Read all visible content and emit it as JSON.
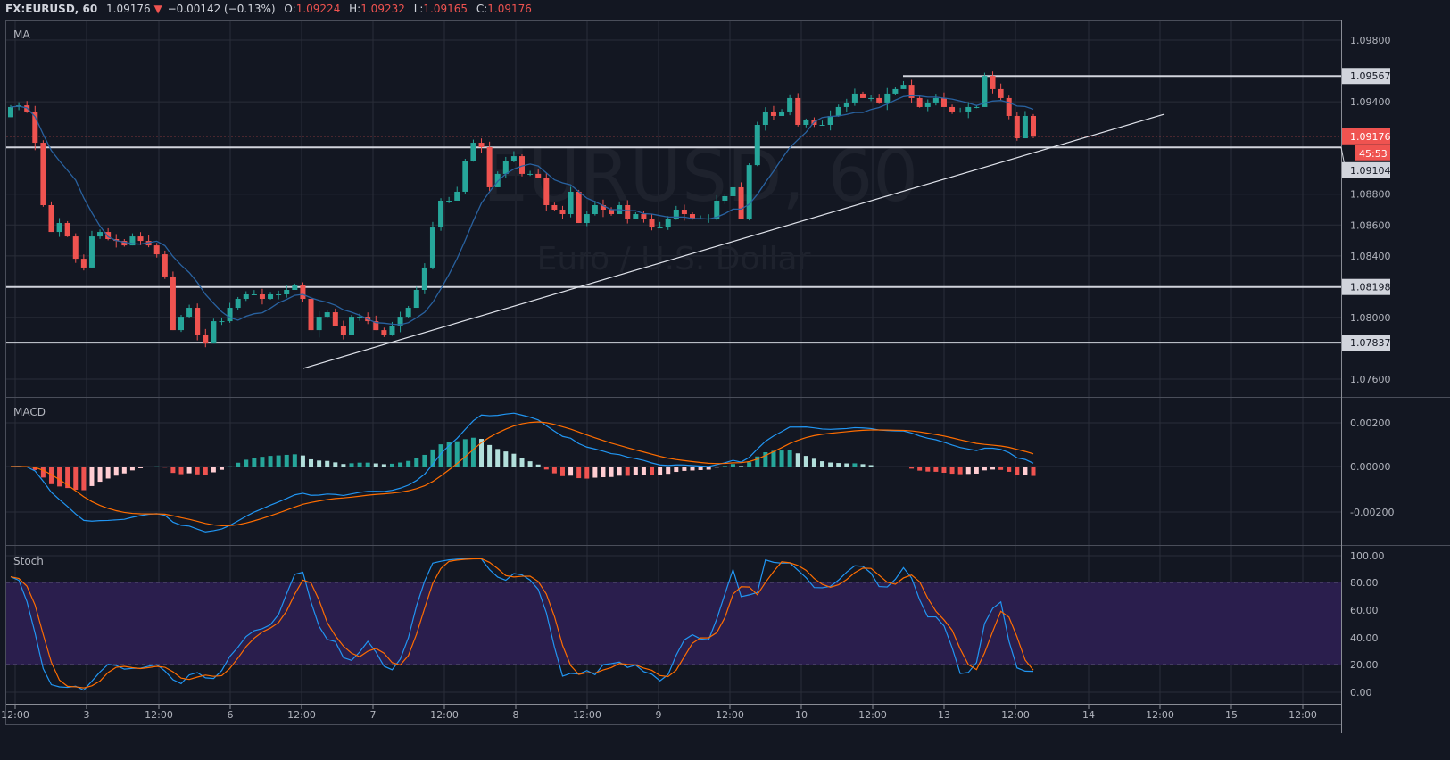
{
  "header": {
    "symbol": "FX:EURUSD, 60",
    "last": "1.09176",
    "change": "−0.00142 (−0.13%)",
    "o_label": "O:",
    "o": "1.09224",
    "h_label": "H:",
    "h": "1.09232",
    "l_label": "L:",
    "l": "1.09165",
    "c_label": "C:",
    "c": "1.09176",
    "direction_icon": "triangle-down"
  },
  "watermark": {
    "title": "EURUSD, 60",
    "subtitle": "Euro / U.S. Dollar"
  },
  "panes": {
    "price": "MA",
    "macd": "MACD",
    "stoch": "Stoch"
  },
  "price_axis": [
    "1.09800",
    "1.09400",
    "1.08800",
    "1.08600",
    "1.08400",
    "1.08000",
    "1.07600"
  ],
  "price_axis_values": [
    1.098,
    1.094,
    1.088,
    1.086,
    1.084,
    1.08,
    1.076
  ],
  "level_tags": [
    "1.09567",
    "1.09104",
    "1.08198",
    "1.07837"
  ],
  "level_values": [
    1.09567,
    1.09104,
    1.08198,
    1.07837
  ],
  "current_price_tag": "1.09176",
  "countdown": "45:53",
  "macd_axis": [
    "0.00200",
    "0.00000",
    "-0.00200"
  ],
  "stoch_axis": [
    "100.00",
    "80.00",
    "60.00",
    "40.00",
    "20.00",
    "0.00"
  ],
  "time_axis": [
    "12:00",
    "3",
    "12:00",
    "6",
    "12:00",
    "7",
    "12:00",
    "8",
    "12:00",
    "9",
    "12:00",
    "10",
    "12:00",
    "13",
    "12:00",
    "14",
    "12:00",
    "15",
    "12:00"
  ],
  "colors": {
    "up": "#26a69a",
    "down": "#ef5350",
    "ma": "#2962a0",
    "macd": "#2196f3",
    "signal": "#ff6d00",
    "stoch_band": "#2a1e4d",
    "background": "#131722"
  },
  "chart_data": {
    "type": "candlestick",
    "interval": "60",
    "first_open": 1.093,
    "closes": [
      1.09366,
      1.09377,
      1.09337,
      1.09134,
      1.08729,
      1.08555,
      1.08613,
      1.08526,
      1.08381,
      1.08324,
      1.08526,
      1.08555,
      1.08509,
      1.08497,
      1.08468,
      1.08526,
      1.08497,
      1.08468,
      1.0841,
      1.08266,
      1.07918,
      1.08005,
      1.08063,
      1.07889,
      1.07831,
      1.07976,
      1.07976,
      1.08063,
      1.08121,
      1.0815,
      1.0815,
      1.08121,
      1.0815,
      1.0815,
      1.08179,
      1.08208,
      1.08121,
      1.07918,
      1.08005,
      1.08034,
      1.07947,
      1.07889,
      1.08005,
      1.08005,
      1.07976,
      1.07918,
      1.07889,
      1.07947,
      1.08005,
      1.08063,
      1.08179,
      1.08324,
      1.08584,
      1.08758,
      1.08758,
      1.08816,
      1.09018,
      1.09134,
      1.09105,
      1.08845,
      1.08932,
      1.09018,
      1.09047,
      1.08932,
      1.08932,
      1.08903,
      1.08729,
      1.087,
      1.08671,
      1.08816,
      1.08613,
      1.08671,
      1.08729,
      1.087,
      1.08671,
      1.08729,
      1.08642,
      1.08671,
      1.08642,
      1.08584,
      1.08584,
      1.08642,
      1.087,
      1.08671,
      1.08642,
      1.08642,
      1.08642,
      1.08758,
      1.08787,
      1.08845,
      1.08642,
      1.08989,
      1.0925,
      1.09337,
      1.09308,
      1.09337,
      1.09424,
      1.0925,
      1.09279,
      1.0925,
      1.0925,
      1.09308,
      1.09366,
      1.09395,
      1.09453,
      1.09424,
      1.09424,
      1.09395,
      1.09453,
      1.09482,
      1.0951,
      1.09424,
      1.09366,
      1.09395,
      1.09424,
      1.09366,
      1.09337,
      1.09337,
      1.09366,
      1.09366,
      1.09568,
      1.09482,
      1.09424,
      1.09308,
      1.09163,
      1.09308,
      1.09176
    ],
    "price_range": [
      1.0748,
      1.0992
    ],
    "trendline": {
      "from": 1.0767,
      "to": 1.0932
    },
    "macd_range": [
      -0.0035,
      0.0033
    ],
    "stoch_range": [
      -5,
      105
    ],
    "stoch_band": [
      20,
      80
    ]
  }
}
